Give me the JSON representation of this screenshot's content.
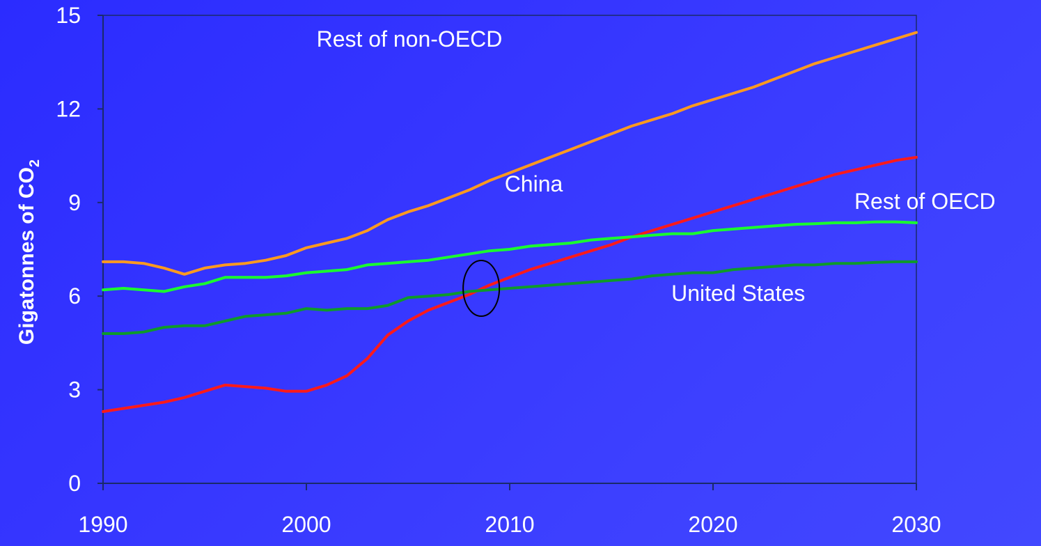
{
  "chart_data": {
    "type": "line",
    "title": "",
    "xlabel": "",
    "ylabel": "Gigatonnes of CO",
    "ylabel_subscript": "2",
    "xlim": [
      1990,
      2030
    ],
    "ylim": [
      0,
      15
    ],
    "x_ticks": [
      1990,
      2000,
      2010,
      2020,
      2030
    ],
    "y_ticks": [
      0,
      3,
      6,
      9,
      12,
      15
    ],
    "grid": false,
    "legend": "none",
    "annotation": "ellipse marking the point where China overtakes the United States, at about 2008–2009",
    "x": [
      1990,
      1991,
      1992,
      1993,
      1994,
      1995,
      1996,
      1997,
      1998,
      1999,
      2000,
      2001,
      2002,
      2003,
      2004,
      2005,
      2006,
      2007,
      2008,
      2009,
      2010,
      2011,
      2012,
      2013,
      2014,
      2015,
      2016,
      2017,
      2018,
      2019,
      2020,
      2021,
      2022,
      2023,
      2024,
      2025,
      2026,
      2027,
      2028,
      2029,
      2030
    ],
    "series": [
      {
        "name": "Rest of non-OECD",
        "color": "#ff9a1f",
        "label_x": 2000.5,
        "label_y": 14.0,
        "values": [
          7.1,
          7.1,
          7.05,
          6.9,
          6.7,
          6.9,
          7.0,
          7.05,
          7.15,
          7.3,
          7.55,
          7.7,
          7.85,
          8.1,
          8.45,
          8.7,
          8.9,
          9.15,
          9.4,
          9.7,
          9.95,
          10.2,
          10.45,
          10.7,
          10.95,
          11.2,
          11.45,
          11.65,
          11.85,
          12.1,
          12.3,
          12.5,
          12.7,
          12.95,
          13.2,
          13.45,
          13.65,
          13.85,
          14.05,
          14.25,
          14.45
        ]
      },
      {
        "name": "China",
        "color": "#ff1a1a",
        "label_x": 2009.75,
        "label_y": 9.35,
        "values": [
          2.3,
          2.4,
          2.5,
          2.6,
          2.75,
          2.95,
          3.15,
          3.1,
          3.05,
          2.95,
          2.95,
          3.15,
          3.45,
          4.0,
          4.75,
          5.2,
          5.55,
          5.8,
          6.05,
          6.35,
          6.6,
          6.85,
          7.05,
          7.25,
          7.45,
          7.65,
          7.9,
          8.1,
          8.3,
          8.5,
          8.7,
          8.9,
          9.1,
          9.3,
          9.5,
          9.7,
          9.9,
          10.05,
          10.2,
          10.35,
          10.45
        ]
      },
      {
        "name": "Rest of OECD",
        "color": "#1aff2e",
        "label_x": 2026.95,
        "label_y": 8.8,
        "values": [
          6.2,
          6.25,
          6.2,
          6.15,
          6.3,
          6.4,
          6.6,
          6.6,
          6.6,
          6.65,
          6.75,
          6.8,
          6.85,
          7.0,
          7.05,
          7.1,
          7.15,
          7.25,
          7.35,
          7.45,
          7.5,
          7.6,
          7.65,
          7.7,
          7.8,
          7.85,
          7.9,
          7.95,
          8.0,
          8.0,
          8.1,
          8.15,
          8.2,
          8.25,
          8.3,
          8.32,
          8.35,
          8.35,
          8.38,
          8.38,
          8.35
        ]
      },
      {
        "name": "United States",
        "color": "#0e9a2a",
        "label_x": 2017.95,
        "label_y": 5.85,
        "values": [
          4.8,
          4.8,
          4.85,
          5.0,
          5.05,
          5.05,
          5.2,
          5.35,
          5.4,
          5.45,
          5.6,
          5.55,
          5.6,
          5.6,
          5.7,
          5.95,
          6.0,
          6.05,
          6.15,
          6.2,
          6.25,
          6.3,
          6.35,
          6.4,
          6.45,
          6.5,
          6.55,
          6.65,
          6.7,
          6.75,
          6.75,
          6.85,
          6.9,
          6.95,
          7.0,
          7.0,
          7.05,
          7.05,
          7.08,
          7.1,
          7.1
        ]
      }
    ]
  }
}
